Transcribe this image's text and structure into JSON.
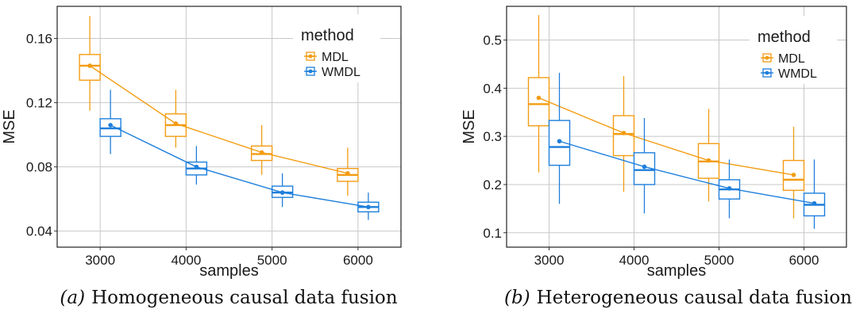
{
  "colors": {
    "MDL": "#f39c12",
    "WMDL": "#1e7fdc",
    "grid": "#c8c8c8",
    "panel_border": "#222222"
  },
  "chart_data": [
    {
      "type": "box",
      "panel_label": "(a)",
      "caption": "Homogeneous causal data fusion",
      "xlabel": "samples",
      "ylabel": "MSE",
      "categories": [
        "3000",
        "4000",
        "5000",
        "6000"
      ],
      "ylim": [
        0.03,
        0.18
      ],
      "yticks": [
        0.04,
        0.08,
        0.12,
        0.16
      ],
      "ytick_labels": [
        "0.04",
        "0.08",
        "0.12",
        "0.16"
      ],
      "legend": {
        "title": "method",
        "entries": [
          "MDL",
          "WMDL"
        ],
        "position": "top-right"
      },
      "series": [
        {
          "name": "MDL",
          "color": "#f39c12",
          "boxes": [
            {
              "lo": 0.115,
              "q1": 0.134,
              "med": 0.143,
              "q3": 0.15,
              "hi": 0.174,
              "mean": 0.143
            },
            {
              "lo": 0.092,
              "q1": 0.099,
              "med": 0.106,
              "q3": 0.113,
              "hi": 0.128,
              "mean": 0.107
            },
            {
              "lo": 0.075,
              "q1": 0.084,
              "med": 0.088,
              "q3": 0.093,
              "hi": 0.106,
              "mean": 0.089
            },
            {
              "lo": 0.062,
              "q1": 0.071,
              "med": 0.075,
              "q3": 0.079,
              "hi": 0.092,
              "mean": 0.076
            }
          ]
        },
        {
          "name": "WMDL",
          "color": "#1e7fdc",
          "boxes": [
            {
              "lo": 0.088,
              "q1": 0.099,
              "med": 0.104,
              "q3": 0.11,
              "hi": 0.128,
              "mean": 0.106
            },
            {
              "lo": 0.069,
              "q1": 0.075,
              "med": 0.079,
              "q3": 0.083,
              "hi": 0.093,
              "mean": 0.08
            },
            {
              "lo": 0.055,
              "q1": 0.061,
              "med": 0.064,
              "q3": 0.068,
              "hi": 0.076,
              "mean": 0.064
            },
            {
              "lo": 0.047,
              "q1": 0.052,
              "med": 0.055,
              "q3": 0.058,
              "hi": 0.064,
              "mean": 0.055
            }
          ]
        }
      ]
    },
    {
      "type": "box",
      "panel_label": "(b)",
      "caption": "Heterogeneous causal data fusion",
      "xlabel": "samples",
      "ylabel": "MSE",
      "categories": [
        "3000",
        "4000",
        "5000",
        "6000"
      ],
      "ylim": [
        0.07,
        0.57
      ],
      "yticks": [
        0.1,
        0.2,
        0.3,
        0.4,
        0.5
      ],
      "ytick_labels": [
        "0.1",
        "0.2",
        "0.3",
        "0.4",
        "0.5"
      ],
      "legend": {
        "title": "method",
        "entries": [
          "MDL",
          "WMDL"
        ],
        "position": "top-right"
      },
      "series": [
        {
          "name": "MDL",
          "color": "#f39c12",
          "boxes": [
            {
              "lo": 0.225,
              "q1": 0.322,
              "med": 0.367,
              "q3": 0.422,
              "hi": 0.552,
              "mean": 0.38
            },
            {
              "lo": 0.185,
              "q1": 0.26,
              "med": 0.305,
              "q3": 0.343,
              "hi": 0.425,
              "mean": 0.307
            },
            {
              "lo": 0.165,
              "q1": 0.213,
              "med": 0.248,
              "q3": 0.285,
              "hi": 0.357,
              "mean": 0.25
            },
            {
              "lo": 0.13,
              "q1": 0.188,
              "med": 0.21,
              "q3": 0.25,
              "hi": 0.32,
              "mean": 0.22
            }
          ]
        },
        {
          "name": "WMDL",
          "color": "#1e7fdc",
          "boxes": [
            {
              "lo": 0.16,
              "q1": 0.24,
              "med": 0.278,
              "q3": 0.333,
              "hi": 0.432,
              "mean": 0.29
            },
            {
              "lo": 0.14,
              "q1": 0.2,
              "med": 0.23,
              "q3": 0.266,
              "hi": 0.338,
              "mean": 0.237
            },
            {
              "lo": 0.13,
              "q1": 0.17,
              "med": 0.19,
              "q3": 0.21,
              "hi": 0.252,
              "mean": 0.192
            },
            {
              "lo": 0.108,
              "q1": 0.135,
              "med": 0.158,
              "q3": 0.182,
              "hi": 0.252,
              "mean": 0.161
            }
          ]
        }
      ]
    }
  ]
}
